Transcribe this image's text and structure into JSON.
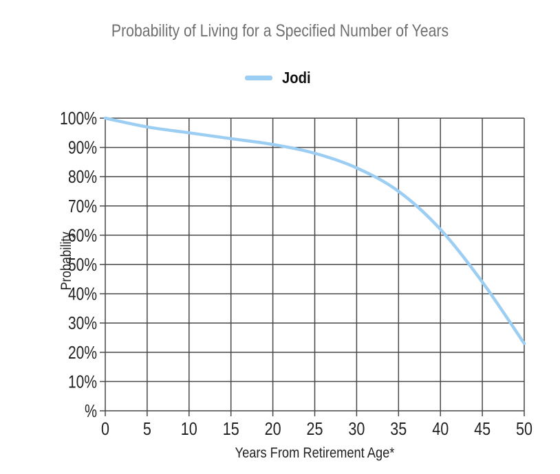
{
  "page": {
    "background": "#ffffff"
  },
  "chart_data": {
    "type": "line",
    "title": "Probability of Living for a Specified Number of Years",
    "xlabel": "Years From Retirement Age*",
    "ylabel": "Probability",
    "x": [
      0,
      5,
      10,
      15,
      20,
      25,
      30,
      35,
      40,
      45,
      50
    ],
    "x_tick_labels": [
      "0",
      "5",
      "10",
      "15",
      "20",
      "25",
      "30",
      "35",
      "40",
      "45",
      "50"
    ],
    "y_tick_values": [
      0,
      10,
      20,
      30,
      40,
      50,
      60,
      70,
      80,
      90,
      100
    ],
    "y_tick_labels": [
      "%",
      "10%",
      "20%",
      "30%",
      "40%",
      "50%",
      "60%",
      "70%",
      "80%",
      "90%",
      "100%"
    ],
    "xlim": [
      0,
      50
    ],
    "ylim": [
      0,
      100
    ],
    "grid": true,
    "legend_position": "top-center",
    "series": [
      {
        "name": "Jodi",
        "color": "#9CCDF3",
        "values": [
          100,
          97,
          95,
          93,
          91,
          88,
          83,
          75,
          62,
          44,
          23
        ]
      }
    ],
    "colors": {
      "grid": "#474747",
      "tick_text": "#222222",
      "title_text": "#6f6f6f",
      "axis_text": "#222222"
    }
  }
}
